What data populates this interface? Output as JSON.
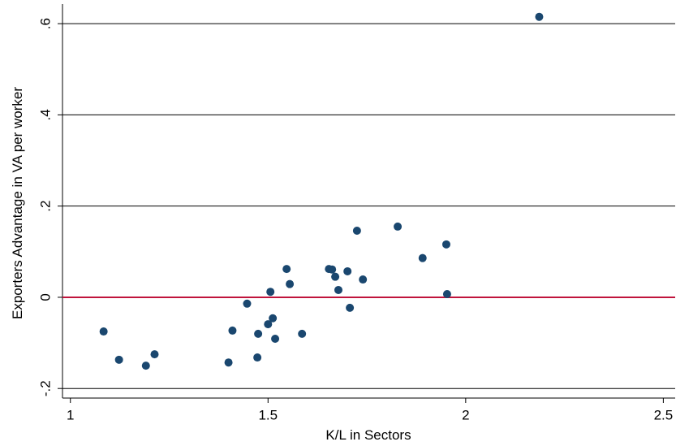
{
  "chart_data": {
    "type": "scatter",
    "x_label": "K/L in Sectors",
    "y_label": "Exporters Advantage in VA per worker",
    "xlim": [
      0.98,
      2.53
    ],
    "ylim": [
      -0.221,
      0.643
    ],
    "xticks": [
      1,
      1.5,
      2,
      2.5
    ],
    "yticks": [
      {
        "value": -0.2,
        "label": "-.2"
      },
      0,
      {
        "value": 0.2,
        "label": ".2"
      },
      {
        "value": 0.4,
        "label": ".4"
      },
      {
        "value": 0.6,
        "label": ".6"
      }
    ],
    "grid": true,
    "reference_line": {
      "y": 0,
      "color": "#c0143c"
    },
    "color": "#1a476f",
    "x": [
      1.084,
      1.123,
      1.191,
      1.213,
      1.4,
      1.41,
      1.447,
      1.475,
      1.473,
      1.5,
      1.512,
      1.518,
      1.506,
      1.547,
      1.555,
      1.586,
      1.654,
      1.662,
      1.67,
      1.678,
      1.701,
      1.707,
      1.725,
      1.74,
      1.828,
      1.891,
      1.951,
      1.953,
      2.186
    ],
    "values": [
      -0.075,
      -0.137,
      -0.15,
      -0.125,
      -0.143,
      -0.073,
      -0.014,
      -0.08,
      -0.132,
      -0.059,
      -0.046,
      -0.091,
      0.012,
      0.062,
      0.029,
      -0.08,
      0.062,
      0.061,
      0.045,
      0.016,
      0.057,
      -0.023,
      0.146,
      0.039,
      0.155,
      0.086,
      0.116,
      0.007,
      0.615
    ]
  }
}
